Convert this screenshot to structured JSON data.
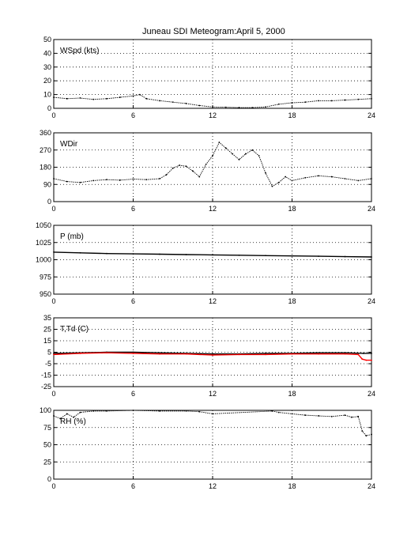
{
  "figure": {
    "title": "Juneau SDI Meteogram:",
    "date": "April  5, 2000"
  },
  "chart_data": [
    {
      "type": "scatter",
      "label": "WSpd (kts)",
      "xlim": [
        0,
        24
      ],
      "ylim": [
        0,
        50
      ],
      "xticks": [
        "0",
        "6",
        "12",
        "18",
        "24"
      ],
      "yticks": [
        "0",
        "10",
        "20",
        "30",
        "40",
        "50"
      ],
      "grid": true,
      "series": [
        {
          "color": "#000000",
          "x": [
            0,
            1,
            2,
            3,
            4,
            5,
            6,
            6.5,
            7,
            8,
            9,
            10,
            11,
            12,
            13,
            14,
            15,
            16,
            17,
            18,
            19,
            20,
            21,
            22,
            23,
            24
          ],
          "y": [
            8,
            7,
            7.5,
            6.5,
            7,
            8,
            9,
            10,
            7,
            5.5,
            4.5,
            3.5,
            2,
            1,
            0.8,
            0.5,
            0.5,
            1,
            3,
            4,
            4.5,
            5.5,
            5.5,
            6,
            6.5,
            7
          ]
        }
      ]
    },
    {
      "type": "scatter",
      "label": "WDir",
      "xlim": [
        0,
        24
      ],
      "ylim": [
        0,
        360
      ],
      "xticks": [
        "0",
        "6",
        "12",
        "18",
        "24"
      ],
      "yticks": [
        "0",
        "90",
        "180",
        "270",
        "360"
      ],
      "grid": true,
      "series": [
        {
          "color": "#000000",
          "x": [
            0,
            1,
            2,
            3,
            4,
            5,
            6,
            7,
            8,
            8.5,
            9,
            9.5,
            10,
            10.5,
            11,
            11.5,
            12,
            12.5,
            13,
            13.5,
            14,
            14.5,
            15,
            15.5,
            16,
            16.5,
            17,
            17.5,
            18,
            19,
            20,
            21,
            22,
            23,
            24
          ],
          "y": [
            120,
            105,
            100,
            110,
            115,
            112,
            118,
            115,
            120,
            140,
            175,
            190,
            185,
            160,
            130,
            195,
            240,
            310,
            280,
            250,
            220,
            250,
            270,
            240,
            150,
            80,
            100,
            130,
            110,
            125,
            135,
            130,
            120,
            110,
            120
          ]
        }
      ]
    },
    {
      "type": "line",
      "label": "P (mb)",
      "xlim": [
        0,
        24
      ],
      "ylim": [
        950,
        1050
      ],
      "xticks": [
        "0",
        "6",
        "12",
        "18",
        "24"
      ],
      "yticks": [
        "950",
        "975",
        "1000",
        "1025",
        "1050"
      ],
      "grid": true,
      "series": [
        {
          "color": "#000000",
          "x": [
            0,
            2,
            4,
            6,
            8,
            10,
            12,
            14,
            16,
            18,
            20,
            22,
            24
          ],
          "y": [
            1011,
            1010,
            1009,
            1008.5,
            1008,
            1007.5,
            1007,
            1006.5,
            1006,
            1005.5,
            1005,
            1004.5,
            1004
          ]
        }
      ]
    },
    {
      "type": "line",
      "label": "T,Td (C)",
      "xlim": [
        0,
        24
      ],
      "ylim": [
        -25,
        35
      ],
      "xticks": [
        "0",
        "6",
        "12",
        "18",
        "24"
      ],
      "yticks": [
        "-25",
        "-15",
        "-5",
        "5",
        "15",
        "25",
        "35"
      ],
      "grid": true,
      "series": [
        {
          "color": "#000000",
          "x": [
            0,
            2,
            4,
            6,
            8,
            10,
            12,
            14,
            16,
            18,
            20,
            22,
            23.4,
            24
          ],
          "y": [
            4,
            4.5,
            5,
            5,
            4.5,
            4,
            3.5,
            3.5,
            4,
            4,
            4.5,
            4.5,
            4,
            4
          ]
        },
        {
          "color": "#ff0000",
          "x": [
            0,
            2,
            4,
            6,
            8,
            10,
            12,
            14,
            16,
            18,
            20,
            22,
            23,
            23.3,
            23.6,
            24
          ],
          "y": [
            3,
            4,
            4.5,
            4,
            3.5,
            3.5,
            2.5,
            3,
            3,
            3.5,
            3.5,
            3.5,
            3,
            -1,
            -2,
            -2
          ]
        }
      ]
    },
    {
      "type": "scatter",
      "label": "RH (%)",
      "xlim": [
        0,
        24
      ],
      "ylim": [
        0,
        100
      ],
      "xticks": [
        "0",
        "6",
        "12",
        "18",
        "24"
      ],
      "yticks": [
        "0",
        "25",
        "50",
        "75",
        "100"
      ],
      "grid": true,
      "series": [
        {
          "color": "#000000",
          "x": [
            0,
            0.5,
            1,
            1.5,
            2,
            3,
            4,
            6,
            8,
            10,
            11,
            12,
            16.5,
            17,
            18,
            19,
            20,
            21,
            22,
            22.5,
            23,
            23.3,
            23.6,
            24
          ],
          "y": [
            92,
            88,
            95,
            90,
            97,
            99,
            99,
            100,
            99,
            99,
            98,
            95,
            99,
            97,
            95,
            93,
            92,
            91,
            93,
            90,
            91,
            70,
            63,
            65
          ]
        }
      ]
    }
  ]
}
